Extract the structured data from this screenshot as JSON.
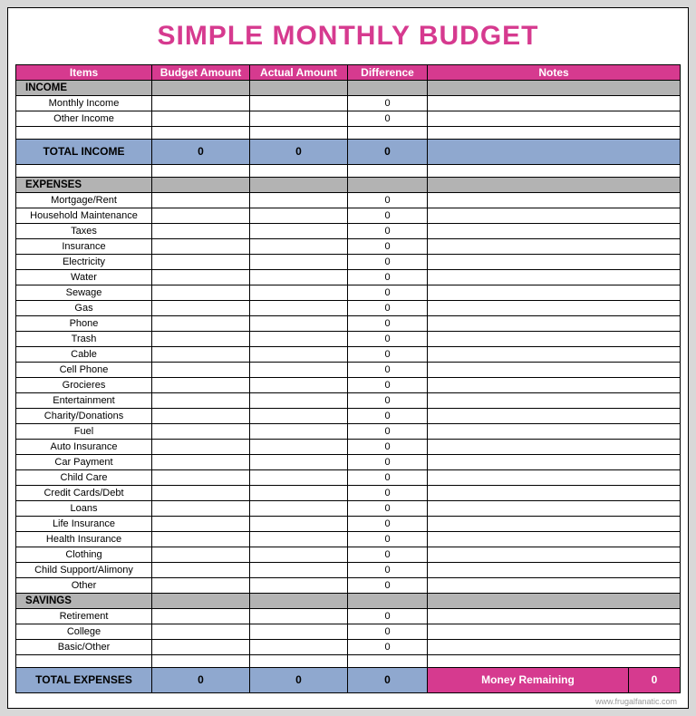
{
  "colors": {
    "title": "#d63a8f",
    "header_bg": "#d63a8f",
    "header_fg": "#ffffff",
    "section_bg": "#b3b3b3",
    "total_bg": "#8fa8cf",
    "money_bg": "#d63a8f",
    "money_fg": "#ffffff",
    "page_bg": "#ffffff"
  },
  "title": "SIMPLE MONTHLY BUDGET",
  "columns": {
    "items": "Items",
    "budget": "Budget Amount",
    "actual": "Actual Amount",
    "diff": "Difference",
    "notes": "Notes"
  },
  "sections": [
    {
      "label": "INCOME",
      "rows": [
        {
          "name": "Monthly Income",
          "budget": "",
          "actual": "",
          "diff": "0",
          "notes": ""
        },
        {
          "name": "Other Income",
          "budget": "",
          "actual": "",
          "diff": "0",
          "notes": ""
        }
      ],
      "spacer_after": true,
      "total": {
        "label": "TOTAL INCOME",
        "budget": "0",
        "actual": "0",
        "diff": "0",
        "notes": ""
      }
    },
    {
      "label": "EXPENSES",
      "rows": [
        {
          "name": "Mortgage/Rent",
          "budget": "",
          "actual": "",
          "diff": "0",
          "notes": ""
        },
        {
          "name": "Household Maintenance",
          "budget": "",
          "actual": "",
          "diff": "0",
          "notes": ""
        },
        {
          "name": "Taxes",
          "budget": "",
          "actual": "",
          "diff": "0",
          "notes": ""
        },
        {
          "name": "Insurance",
          "budget": "",
          "actual": "",
          "diff": "0",
          "notes": ""
        },
        {
          "name": "Electricity",
          "budget": "",
          "actual": "",
          "diff": "0",
          "notes": ""
        },
        {
          "name": "Water",
          "budget": "",
          "actual": "",
          "diff": "0",
          "notes": ""
        },
        {
          "name": "Sewage",
          "budget": "",
          "actual": "",
          "diff": "0",
          "notes": ""
        },
        {
          "name": "Gas",
          "budget": "",
          "actual": "",
          "diff": "0",
          "notes": ""
        },
        {
          "name": "Phone",
          "budget": "",
          "actual": "",
          "diff": "0",
          "notes": ""
        },
        {
          "name": "Trash",
          "budget": "",
          "actual": "",
          "diff": "0",
          "notes": ""
        },
        {
          "name": "Cable",
          "budget": "",
          "actual": "",
          "diff": "0",
          "notes": ""
        },
        {
          "name": "Cell Phone",
          "budget": "",
          "actual": "",
          "diff": "0",
          "notes": ""
        },
        {
          "name": "Grocieres",
          "budget": "",
          "actual": "",
          "diff": "0",
          "notes": ""
        },
        {
          "name": "Entertainment",
          "budget": "",
          "actual": "",
          "diff": "0",
          "notes": ""
        },
        {
          "name": "Charity/Donations",
          "budget": "",
          "actual": "",
          "diff": "0",
          "notes": ""
        },
        {
          "name": "Fuel",
          "budget": "",
          "actual": "",
          "diff": "0",
          "notes": ""
        },
        {
          "name": "Auto Insurance",
          "budget": "",
          "actual": "",
          "diff": "0",
          "notes": ""
        },
        {
          "name": "Car Payment",
          "budget": "",
          "actual": "",
          "diff": "0",
          "notes": ""
        },
        {
          "name": "Child Care",
          "budget": "",
          "actual": "",
          "diff": "0",
          "notes": ""
        },
        {
          "name": "Credit Cards/Debt",
          "budget": "",
          "actual": "",
          "diff": "0",
          "notes": ""
        },
        {
          "name": "Loans",
          "budget": "",
          "actual": "",
          "diff": "0",
          "notes": ""
        },
        {
          "name": "Life Insurance",
          "budget": "",
          "actual": "",
          "diff": "0",
          "notes": ""
        },
        {
          "name": "Health Insurance",
          "budget": "",
          "actual": "",
          "diff": "0",
          "notes": ""
        },
        {
          "name": "Clothing",
          "budget": "",
          "actual": "",
          "diff": "0",
          "notes": ""
        },
        {
          "name": "Child Support/Alimony",
          "budget": "",
          "actual": "",
          "diff": "0",
          "notes": ""
        },
        {
          "name": "Other",
          "budget": "",
          "actual": "",
          "diff": "0",
          "notes": ""
        }
      ]
    },
    {
      "label": "SAVINGS",
      "rows": [
        {
          "name": "Retirement",
          "budget": "",
          "actual": "",
          "diff": "0",
          "notes": ""
        },
        {
          "name": "College",
          "budget": "",
          "actual": "",
          "diff": "0",
          "notes": ""
        },
        {
          "name": "Basic/Other",
          "budget": "",
          "actual": "",
          "diff": "0",
          "notes": ""
        }
      ],
      "spacer_after": true
    }
  ],
  "total_expenses": {
    "label": "TOTAL EXPENSES",
    "budget": "0",
    "actual": "0",
    "diff": "0"
  },
  "money_remaining": {
    "label": "Money Remaining",
    "value": "0"
  },
  "footer": "www.frugalfanatic.com"
}
